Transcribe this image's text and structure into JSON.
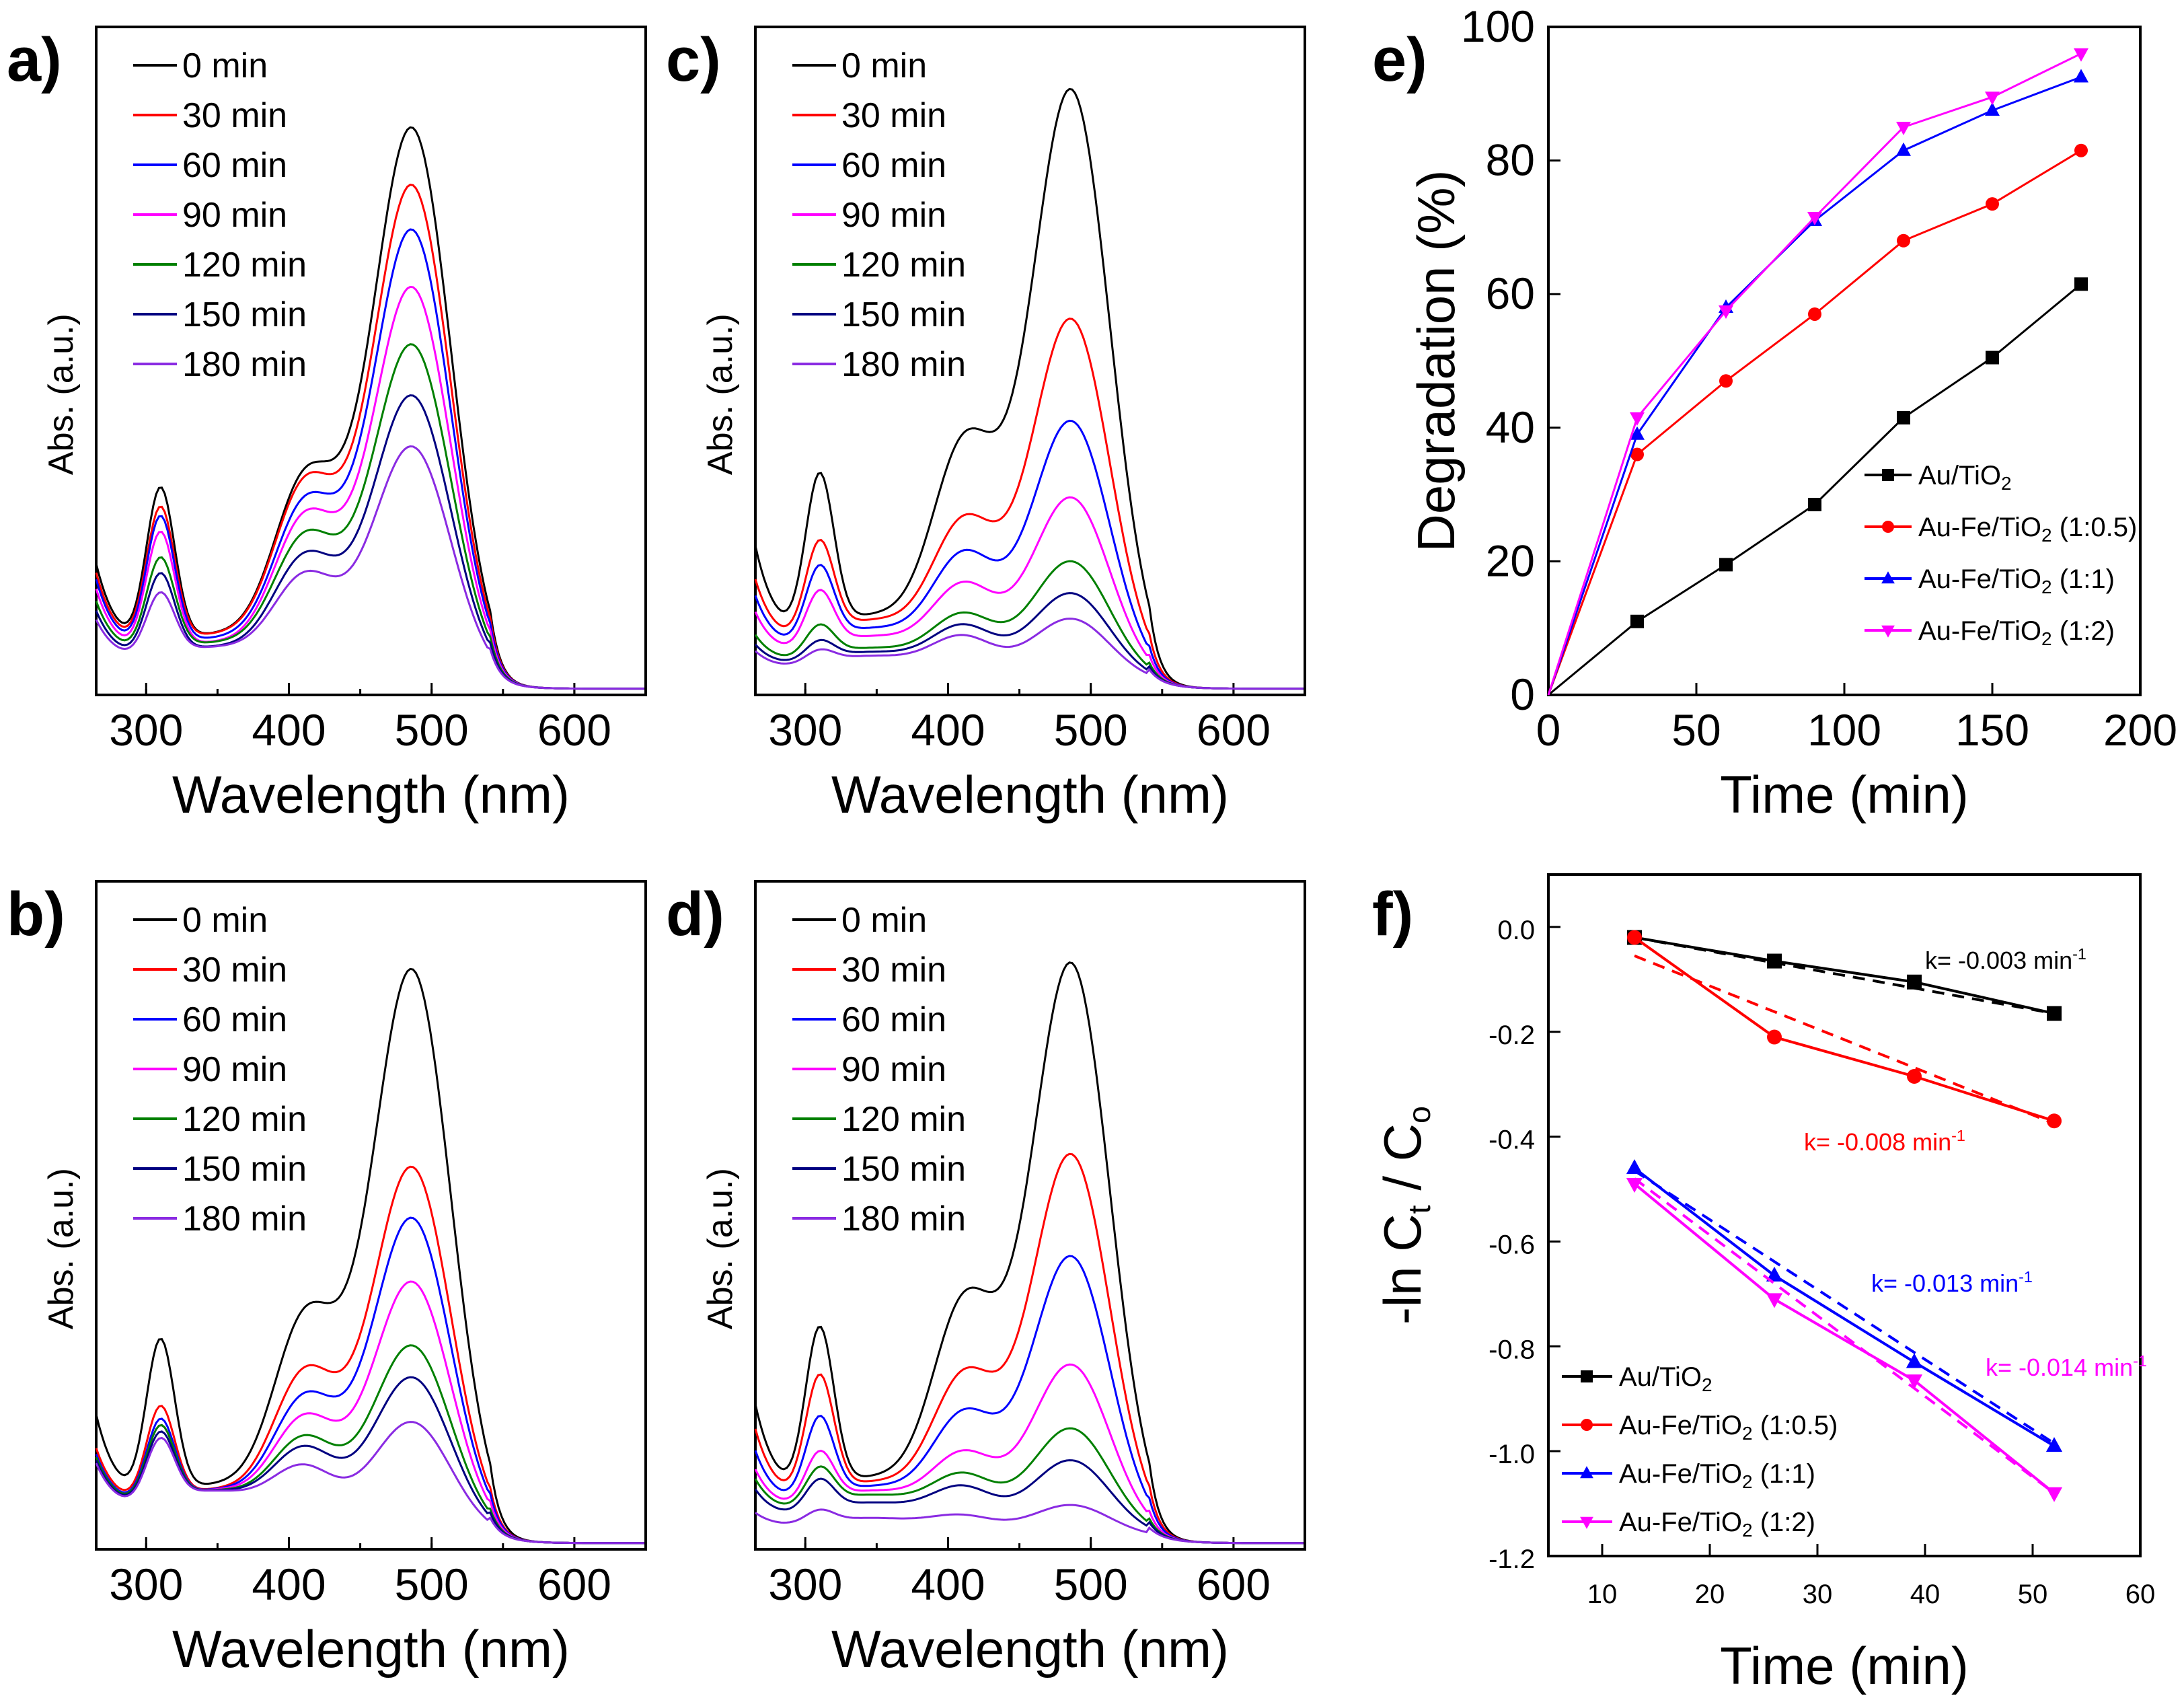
{
  "figure": {
    "panels": [
      "a)",
      "b)",
      "c)",
      "d)",
      "e)",
      "f)"
    ]
  },
  "chart_data": [
    {
      "panel": "a)",
      "type": "line",
      "xlabel": "Wavelength (nm)",
      "ylabel": "Abs. (a.u.)",
      "xlim": [
        265,
        650
      ],
      "ylim": [
        0,
        1
      ],
      "xticks": [
        300,
        400,
        500,
        600
      ],
      "legend": "top-left",
      "series": [
        {
          "name": "0 min",
          "color": "#000000",
          "peak": 0.87,
          "shoulder": 0.2,
          "uv": 0.37,
          "trough": 0.12,
          "tail": 0.0
        },
        {
          "name": "30 min",
          "color": "#ff0000",
          "peak": 0.78,
          "shoulder": 0.2,
          "uv": 0.34,
          "trough": 0.12,
          "tail": 0.0
        },
        {
          "name": "60 min",
          "color": "#0000ff",
          "peak": 0.71,
          "shoulder": 0.18,
          "uv": 0.32,
          "trough": 0.11,
          "tail": 0.0
        },
        {
          "name": "90 min",
          "color": "#ff00ff",
          "peak": 0.62,
          "shoulder": 0.17,
          "uv": 0.29,
          "trough": 0.1,
          "tail": 0.0
        },
        {
          "name": "120 min",
          "color": "#008000",
          "peak": 0.53,
          "shoulder": 0.15,
          "uv": 0.25,
          "trough": 0.1,
          "tail": 0.0
        },
        {
          "name": "150 min",
          "color": "#000080",
          "peak": 0.45,
          "shoulder": 0.13,
          "uv": 0.22,
          "trough": 0.09,
          "tail": 0.0
        },
        {
          "name": "180 min",
          "color": "#8a2be2",
          "peak": 0.37,
          "shoulder": 0.11,
          "uv": 0.19,
          "trough": 0.09,
          "tail": 0.0
        }
      ]
    },
    {
      "panel": "b)",
      "type": "line",
      "xlabel": "Wavelength (nm)",
      "ylabel": "Abs. (a.u.)",
      "xlim": [
        265,
        650
      ],
      "ylim": [
        0,
        1
      ],
      "xticks": [
        300,
        400,
        500,
        600
      ],
      "legend": "top-left",
      "series": [
        {
          "name": "0 min",
          "color": "#000000",
          "peak": 0.89,
          "shoulder": 0.22,
          "uv": 0.38,
          "trough": 0.13,
          "tail": 0.0
        },
        {
          "name": "30 min",
          "color": "#ff0000",
          "peak": 0.58,
          "shoulder": 0.17,
          "uv": 0.27,
          "trough": 0.12,
          "tail": 0.0
        },
        {
          "name": "60 min",
          "color": "#0000ff",
          "peak": 0.5,
          "shoulder": 0.14,
          "uv": 0.25,
          "trough": 0.12,
          "tail": 0.0
        },
        {
          "name": "90 min",
          "color": "#ff00ff",
          "peak": 0.4,
          "shoulder": 0.12,
          "uv": 0.24,
          "trough": 0.12,
          "tail": 0.0
        },
        {
          "name": "120 min",
          "color": "#008000",
          "peak": 0.3,
          "shoulder": 0.1,
          "uv": 0.24,
          "trough": 0.12,
          "tail": 0.0
        },
        {
          "name": "150 min",
          "color": "#000080",
          "peak": 0.25,
          "shoulder": 0.09,
          "uv": 0.23,
          "trough": 0.12,
          "tail": 0.0
        },
        {
          "name": "180 min",
          "color": "#8a2be2",
          "peak": 0.18,
          "shoulder": 0.07,
          "uv": 0.22,
          "trough": 0.12,
          "tail": 0.0
        }
      ]
    },
    {
      "panel": "c)",
      "type": "line",
      "xlabel": "Wavelength (nm)",
      "ylabel": "Abs. (a.u.)",
      "xlim": [
        265,
        650
      ],
      "ylim": [
        0,
        1
      ],
      "xticks": [
        300,
        400,
        500,
        600
      ],
      "legend": "top-left",
      "series": [
        {
          "name": "0 min",
          "color": "#000000",
          "peak": 0.93,
          "shoulder": 0.24,
          "uv": 0.42,
          "trough": 0.17,
          "tail": 0.0
        },
        {
          "name": "30 min",
          "color": "#ff0000",
          "peak": 0.57,
          "shoulder": 0.16,
          "uv": 0.31,
          "trough": 0.16,
          "tail": 0.0
        },
        {
          "name": "60 min",
          "color": "#0000ff",
          "peak": 0.41,
          "shoulder": 0.13,
          "uv": 0.26,
          "trough": 0.14,
          "tail": 0.0
        },
        {
          "name": "90 min",
          "color": "#ff00ff",
          "peak": 0.29,
          "shoulder": 0.1,
          "uv": 0.21,
          "trough": 0.12,
          "tail": 0.0
        },
        {
          "name": "120 min",
          "color": "#008000",
          "peak": 0.19,
          "shoulder": 0.07,
          "uv": 0.14,
          "trough": 0.09,
          "tail": 0.0
        },
        {
          "name": "150 min",
          "color": "#000080",
          "peak": 0.14,
          "shoulder": 0.06,
          "uv": 0.11,
          "trough": 0.08,
          "tail": 0.0
        },
        {
          "name": "180 min",
          "color": "#8a2be2",
          "peak": 0.1,
          "shoulder": 0.05,
          "uv": 0.09,
          "trough": 0.07,
          "tail": 0.0
        }
      ]
    },
    {
      "panel": "d)",
      "type": "line",
      "xlabel": "Wavelength (nm)",
      "ylabel": "Abs. (a.u.)",
      "xlim": [
        265,
        650
      ],
      "ylim": [
        0,
        1
      ],
      "xticks": [
        300,
        400,
        500,
        600
      ],
      "legend": "top-left",
      "series": [
        {
          "name": "0 min",
          "color": "#000000",
          "peak": 0.9,
          "shoulder": 0.24,
          "uv": 0.41,
          "trough": 0.15,
          "tail": 0.0
        },
        {
          "name": "30 min",
          "color": "#ff0000",
          "peak": 0.6,
          "shoulder": 0.16,
          "uv": 0.33,
          "trough": 0.14,
          "tail": 0.0
        },
        {
          "name": "60 min",
          "color": "#0000ff",
          "peak": 0.44,
          "shoulder": 0.12,
          "uv": 0.26,
          "trough": 0.13,
          "tail": 0.0
        },
        {
          "name": "90 min",
          "color": "#ff00ff",
          "peak": 0.27,
          "shoulder": 0.08,
          "uv": 0.2,
          "trough": 0.12,
          "tail": 0.0
        },
        {
          "name": "120 min",
          "color": "#008000",
          "peak": 0.17,
          "shoulder": 0.06,
          "uv": 0.17,
          "trough": 0.11,
          "tail": 0.0
        },
        {
          "name": "150 min",
          "color": "#000080",
          "peak": 0.12,
          "shoulder": 0.05,
          "uv": 0.14,
          "trough": 0.09,
          "tail": 0.0
        },
        {
          "name": "180 min",
          "color": "#8a2be2",
          "peak": 0.05,
          "shoulder": 0.02,
          "uv": 0.07,
          "trough": 0.05,
          "tail": 0.0
        }
      ]
    },
    {
      "panel": "e)",
      "type": "line",
      "xlabel": "Time (min)",
      "ylabel": "Degradation (%)",
      "xlim": [
        0,
        200
      ],
      "ylim": [
        0,
        100
      ],
      "xticks": [
        0,
        50,
        100,
        150,
        200
      ],
      "yticks": [
        0,
        20,
        40,
        60,
        80,
        100
      ],
      "legend": "right",
      "x": [
        0,
        30,
        60,
        90,
        120,
        150,
        180
      ],
      "series": [
        {
          "name": "Au/TiO2",
          "label_main": "Au/TiO",
          "label_sub": "2",
          "label_suffix": "",
          "color": "#000000",
          "marker": "square",
          "values": [
            0,
            11,
            19.5,
            28.5,
            41.5,
            50.5,
            61.5
          ]
        },
        {
          "name": "Au-Fe/TiO2 (1:0.5)",
          "label_main": "Au-Fe/TiO",
          "label_sub": "2",
          "label_suffix": " (1:0.5)",
          "color": "#ff0000",
          "marker": "circle",
          "values": [
            0,
            36,
            47,
            57,
            68,
            73.5,
            81.5
          ]
        },
        {
          "name": "Au-Fe/TiO2 (1:1)",
          "label_main": "Au-Fe/TiO",
          "label_sub": "2",
          "label_suffix": " (1:1)",
          "color": "#0000ff",
          "marker": "triangle-up",
          "values": [
            0,
            39,
            58,
            71,
            81.5,
            87.5,
            92.5
          ]
        },
        {
          "name": "Au-Fe/TiO2 (1:2)",
          "label_main": "Au-Fe/TiO",
          "label_sub": "2",
          "label_suffix": " (1:2)",
          "color": "#ff00ff",
          "marker": "triangle-down",
          "values": [
            0,
            41.5,
            57.5,
            71.5,
            85,
            89.5,
            96
          ]
        }
      ]
    },
    {
      "panel": "f)",
      "type": "line",
      "xlabel": "Time (min)",
      "ylabel": "-ln Ct / C0",
      "ylabel_parts": [
        "-ln  C",
        "t",
        " / C",
        "o"
      ],
      "xlim": [
        5,
        60
      ],
      "ylim": [
        -1.2,
        0.1
      ],
      "xticks": [
        10,
        20,
        30,
        40,
        50,
        60
      ],
      "yticks": [
        0.0,
        -0.2,
        -0.4,
        -0.6,
        -0.8,
        -1.0,
        -1.2
      ],
      "ytick_labels": [
        "0.0",
        "-0.2",
        "-0.4",
        "-0.6",
        "-0.8",
        "-1.0",
        "-1.2"
      ],
      "legend": "bottom-left",
      "x": [
        13,
        26,
        39,
        52
      ],
      "series": [
        {
          "name": "Au/TiO2",
          "label_main": "Au/TiO",
          "label_sub": "2",
          "label_suffix": "",
          "color": "#000000",
          "marker": "square",
          "values": [
            -0.02,
            -0.065,
            -0.105,
            -0.165
          ],
          "fit": [
            -0.02,
            -0.165
          ],
          "k_text": "k= -0.003 min",
          "k_sup": "-1"
        },
        {
          "name": "Au-Fe/TiO2 (1:0.5)",
          "label_main": "Au-Fe/TiO",
          "label_sub": "2",
          "label_suffix": " (1:0.5)",
          "color": "#ff0000",
          "marker": "circle",
          "values": [
            -0.02,
            -0.21,
            -0.285,
            -0.37
          ],
          "fit": [
            -0.055,
            -0.375
          ],
          "k_text": "k= -0.008 min",
          "k_sup": "-1"
        },
        {
          "name": "Au-Fe/TiO2 (1:1)",
          "label_main": "Au-Fe/TiO",
          "label_sub": "2",
          "label_suffix": " (1:1)",
          "color": "#0000ff",
          "marker": "triangle-up",
          "values": [
            -0.46,
            -0.665,
            -0.83,
            -0.99
          ],
          "fit": [
            -0.465,
            -0.985
          ],
          "k_text": "k= -0.013 min",
          "k_sup": "-1"
        },
        {
          "name": "Au-Fe/TiO2 (1:2)",
          "label_main": "Au-Fe/TiO",
          "label_sub": "2",
          "label_suffix": " (1:2)",
          "color": "#ff00ff",
          "marker": "triangle-down",
          "values": [
            -0.49,
            -0.71,
            -0.865,
            -1.08
          ],
          "fit": [
            -0.48,
            -1.08
          ],
          "k_text": "k= -0.014 min",
          "k_sup": "-1"
        }
      ]
    }
  ]
}
